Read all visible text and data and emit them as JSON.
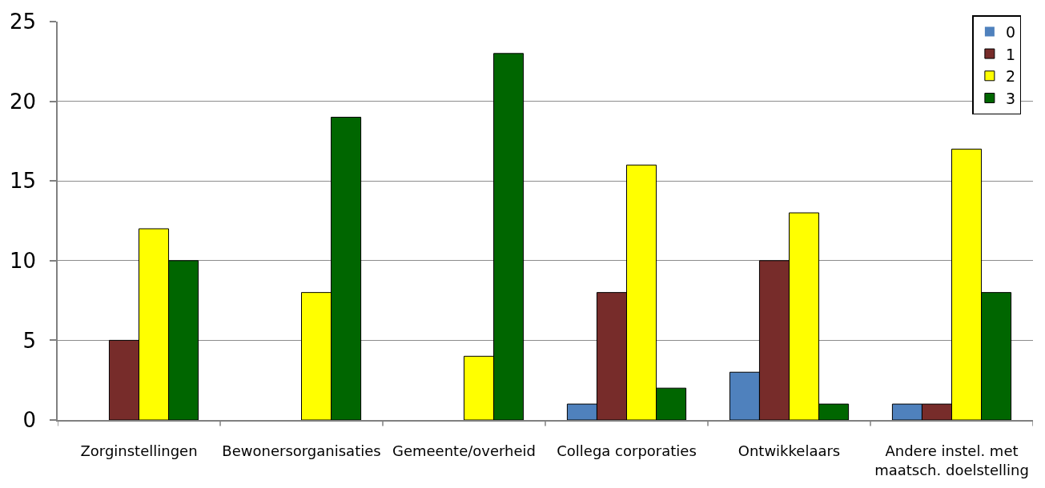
{
  "chart_data": {
    "type": "bar",
    "categories": [
      "Zorginstellingen",
      "Bewonersorganisaties",
      "Gemeente/overheid",
      "Collega corporaties",
      "Ontwikkelaars",
      "Andere instel. met maatsch. doelstelling"
    ],
    "series": [
      {
        "name": "0",
        "color": "#4f81bd",
        "values": [
          0,
          0,
          0,
          1,
          3,
          1
        ]
      },
      {
        "name": "1",
        "color": "#772c2a",
        "values": [
          5,
          0,
          0,
          8,
          10,
          1
        ]
      },
      {
        "name": "2",
        "color": "#ffff00",
        "values": [
          12,
          8,
          4,
          16,
          13,
          17
        ]
      },
      {
        "name": "3",
        "color": "#006600",
        "values": [
          10,
          19,
          23,
          2,
          1,
          8
        ]
      }
    ],
    "ylim": [
      0,
      25
    ],
    "yticks": [
      0,
      5,
      10,
      15,
      20,
      25
    ],
    "grid": "y",
    "legend": "top right"
  }
}
